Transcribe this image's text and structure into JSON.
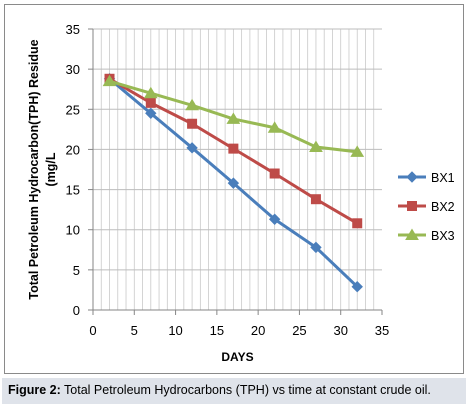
{
  "chart_data": {
    "type": "line",
    "xlabel": "DAYS",
    "ylabel": "Total Petroleum Hydrocarbon(TPH) Residue (mg/L",
    "xlim": [
      0,
      35
    ],
    "ylim": [
      0,
      35
    ],
    "xticks": [
      0,
      5,
      10,
      15,
      20,
      25,
      30,
      35
    ],
    "yticks": [
      0,
      5,
      10,
      15,
      20,
      25,
      30,
      35
    ],
    "grid": true,
    "legend_position": "right",
    "x": [
      2,
      7,
      12,
      17,
      22,
      27,
      32
    ],
    "series": [
      {
        "name": "BX1",
        "color": "#4a7ebb",
        "marker": "diamond",
        "values": [
          28.8,
          24.5,
          20.2,
          15.8,
          11.3,
          7.8,
          2.9
        ]
      },
      {
        "name": "BX2",
        "color": "#be4b48",
        "marker": "square",
        "values": [
          28.8,
          25.8,
          23.2,
          20.1,
          17.0,
          13.8,
          10.8
        ]
      },
      {
        "name": "BX3",
        "color": "#98b954",
        "marker": "triangle",
        "values": [
          28.5,
          27.0,
          25.5,
          23.8,
          22.7,
          20.3,
          19.7
        ]
      }
    ]
  },
  "caption": {
    "label": "Figure 2:",
    "text": " Total Petroleum Hydrocarbons (TPH) vs time at constant crude oil."
  }
}
